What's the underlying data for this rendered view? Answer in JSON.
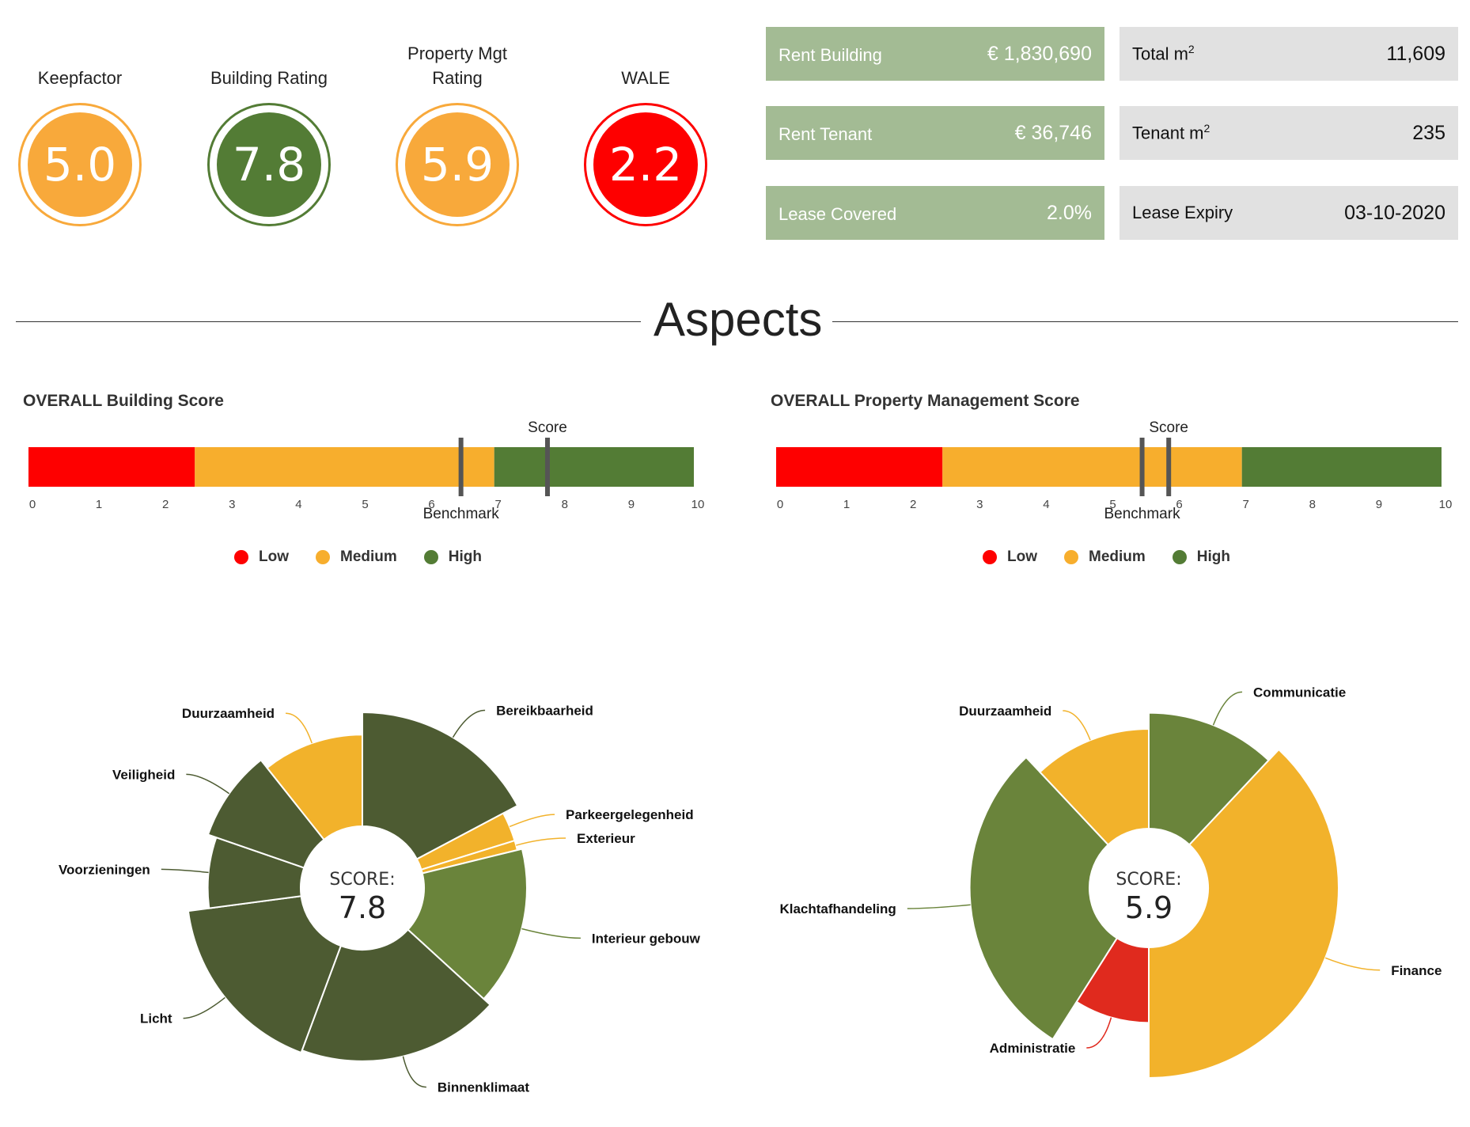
{
  "ratings": [
    {
      "label": "Keepfactor",
      "value": "5.0",
      "color": "#f8a93b"
    },
    {
      "label": "Building Rating",
      "value": "7.8",
      "color": "#537c35"
    },
    {
      "label": "Property Mgt Rating",
      "value": "5.9",
      "color": "#f8a93b"
    },
    {
      "label": "WALE",
      "value": "2.2",
      "color": "#fe0000"
    }
  ],
  "kpis": {
    "rent_building": {
      "label": "Rent Building",
      "value": "€ 1,830,690"
    },
    "rent_tenant": {
      "label": "Rent Tenant",
      "value": "€ 36,746"
    },
    "lease_covered": {
      "label": "Lease Covered",
      "value": "2.0%"
    },
    "total_m2": {
      "label": "Total m",
      "sup": "2",
      "value": "11,609"
    },
    "tenant_m2": {
      "label": "Tenant m",
      "sup": "2",
      "value": "235"
    },
    "lease_expiry": {
      "label": "Lease Expiry",
      "value": "03-10-2020"
    }
  },
  "section_title": "Aspects",
  "colors": {
    "low": "#fe0000",
    "medium": "#f7ae2d",
    "high": "#537c35",
    "kpi_green": "#a3bb94",
    "kpi_grey": "#e1e1e1"
  },
  "legend": [
    "Low",
    "Medium",
    "High"
  ],
  "gauge_axis_ticks": [
    "0",
    "1",
    "2",
    "3",
    "4",
    "5",
    "6",
    "7",
    "8",
    "9",
    "10"
  ],
  "gauge_labels": {
    "score": "Score",
    "benchmark": "Benchmark"
  },
  "chart_data": [
    {
      "type": "bar",
      "title": "OVERALL Building Score",
      "xlim": [
        0,
        10
      ],
      "bands": [
        {
          "name": "Low",
          "from": 0,
          "to": 2.5
        },
        {
          "name": "Medium",
          "from": 2.5,
          "to": 7
        },
        {
          "name": "High",
          "from": 7,
          "to": 10
        }
      ],
      "score": 7.8,
      "benchmark": 6.5
    },
    {
      "type": "bar",
      "title": "OVERALL Property Management Score",
      "xlim": [
        0,
        10
      ],
      "bands": [
        {
          "name": "Low",
          "from": 0,
          "to": 2.5
        },
        {
          "name": "Medium",
          "from": 2.5,
          "to": 7
        },
        {
          "name": "High",
          "from": 7,
          "to": 10
        }
      ],
      "score": 5.9,
      "benchmark": 5.5
    },
    {
      "type": "pie",
      "score_label": "SCORE:",
      "score_value": "7.8",
      "slices": [
        {
          "name": "Bereikbaarheid",
          "value": 8.5,
          "weight": 1.05,
          "color": "#4d5b32"
        },
        {
          "name": "Parkeergelegenheid",
          "value": 7.2,
          "weight": 0.18,
          "color": "#f2b22b"
        },
        {
          "name": "Exterieur",
          "value": 7.2,
          "weight": 0.06,
          "color": "#f2b22b"
        },
        {
          "name": "Interieur gebouw",
          "value": 7.6,
          "weight": 0.95,
          "color": "#6a843b"
        },
        {
          "name": "Binnenklimaat",
          "value": 8.3,
          "weight": 1.15,
          "color": "#4d5b32"
        },
        {
          "name": "Licht",
          "value": 8.5,
          "weight": 1.05,
          "color": "#4d5b32"
        },
        {
          "name": "Voorzieningen",
          "value": 6.8,
          "weight": 0.45,
          "color": "#4d5b32"
        },
        {
          "name": "Veiligheid",
          "value": 7.5,
          "weight": 0.55,
          "color": "#4d5b32"
        },
        {
          "name": "Duurzaamheid",
          "value": 6.7,
          "weight": 0.65,
          "color": "#f2b22b"
        }
      ]
    },
    {
      "type": "pie",
      "score_label": "SCORE:",
      "score_value": "5.9",
      "slices": [
        {
          "name": "Communicatie",
          "value": 7.5,
          "weight": 0.6,
          "color": "#6a843b"
        },
        {
          "name": "Finance",
          "value": 8.6,
          "weight": 1.9,
          "color": "#f2b22b"
        },
        {
          "name": "Administratie",
          "value": 4.5,
          "weight": 0.45,
          "color": "#e02a1e"
        },
        {
          "name": "Klachtafhandeling",
          "value": 7.8,
          "weight": 1.45,
          "color": "#6a843b"
        },
        {
          "name": "Duurzaamheid",
          "value": 6.3,
          "weight": 0.6,
          "color": "#f2b22b"
        }
      ]
    }
  ]
}
